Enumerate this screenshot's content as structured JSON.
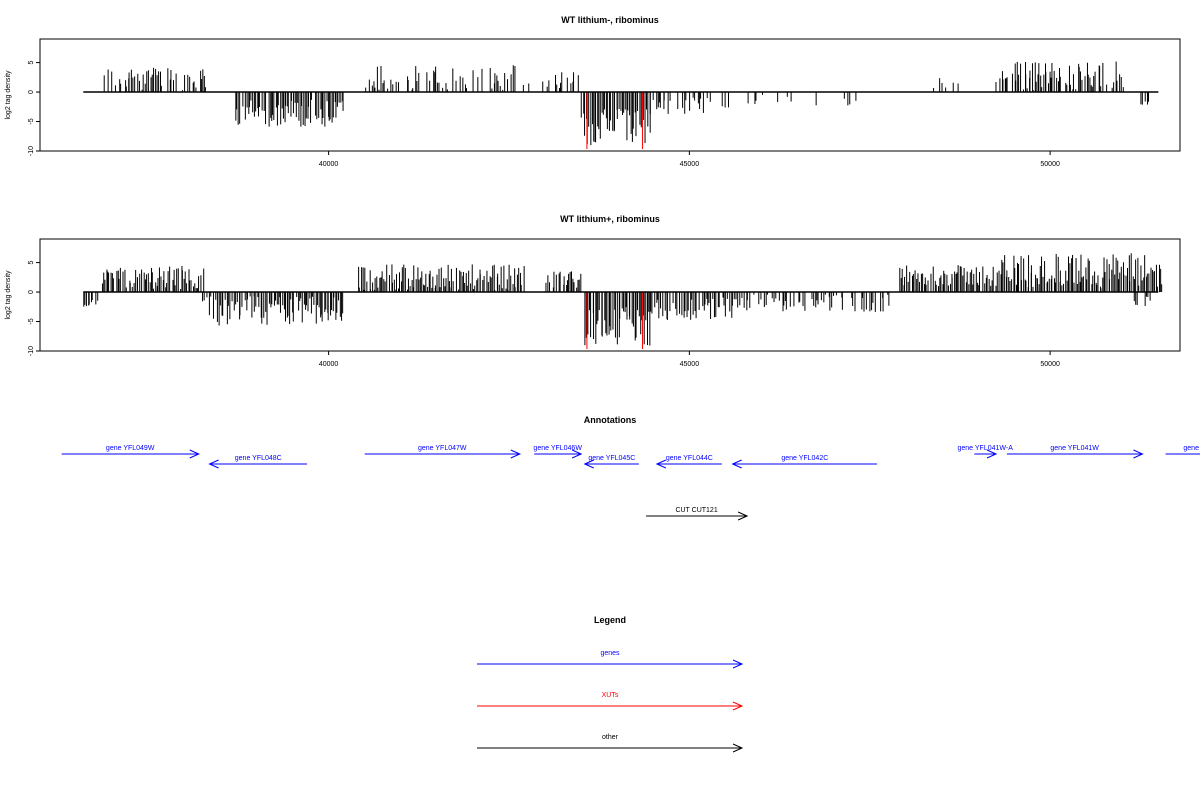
{
  "colors": {
    "gene": "#0000ff",
    "xut": "#ff0000",
    "other": "#000000",
    "bars": "#000000",
    "highlight": "#ff0000"
  },
  "chart_data": [
    {
      "type": "bar",
      "title": "WT lithium-, ribominus",
      "ylabel": "log2 tag density",
      "xlim": [
        36000,
        51800
      ],
      "ylim": [
        -10,
        9
      ],
      "xticks": [
        40000,
        45000,
        50000
      ],
      "xtick_labels": [
        "40000",
        "45000",
        "50000"
      ],
      "yticks": [
        5,
        0,
        -5,
        -10
      ],
      "ytick_labels": [
        "5",
        "0",
        "-5",
        "-10"
      ],
      "baseline_range": [
        36600,
        51500
      ],
      "highlight_lines": [
        43580,
        44350
      ],
      "segments": [
        {
          "x0": 36850,
          "x1": 38300,
          "sign": 1,
          "mean": 2.3,
          "amp": 2.0,
          "density": 0.55
        },
        {
          "x0": 38700,
          "x1": 40200,
          "sign": -1,
          "mean": 3.6,
          "amp": 2.3,
          "density": 0.95
        },
        {
          "x0": 40500,
          "x1": 42800,
          "sign": 1,
          "mean": 2.2,
          "amp": 2.4,
          "density": 0.55
        },
        {
          "x0": 42950,
          "x1": 43500,
          "sign": 1,
          "mean": 2.0,
          "amp": 1.6,
          "density": 0.55
        },
        {
          "x0": 43500,
          "x1": 44450,
          "sign": -1,
          "mean": 6.0,
          "amp": 3.2,
          "density": 1.0
        },
        {
          "x0": 44450,
          "x1": 45550,
          "sign": -1,
          "mean": 2.4,
          "amp": 1.5,
          "density": 0.45
        },
        {
          "x0": 45550,
          "x1": 47400,
          "sign": -1,
          "mean": 1.4,
          "amp": 1.0,
          "density": 0.18
        },
        {
          "x0": 48300,
          "x1": 49300,
          "sign": 1,
          "mean": 1.5,
          "amp": 1.0,
          "density": 0.12
        },
        {
          "x0": 49300,
          "x1": 51000,
          "sign": 1,
          "mean": 2.8,
          "amp": 2.5,
          "density": 0.8
        },
        {
          "x0": 51250,
          "x1": 51350,
          "sign": -1,
          "mean": 2.0,
          "amp": 0.5,
          "density": 0.5
        }
      ]
    },
    {
      "type": "bar",
      "title": "WT lithium+, ribominus",
      "ylabel": "log2 tag density",
      "xlim": [
        36000,
        51800
      ],
      "ylim": [
        -10,
        9
      ],
      "xticks": [
        40000,
        45000,
        50000
      ],
      "xtick_labels": [
        "40000",
        "45000",
        "50000"
      ],
      "yticks": [
        5,
        0,
        -5,
        -10
      ],
      "ytick_labels": [
        "5",
        "0",
        "-5",
        "-10"
      ],
      "baseline_range": [
        36600,
        51500
      ],
      "highlight_lines": [
        43580,
        44350
      ],
      "segments": [
        {
          "x0": 36600,
          "x1": 36800,
          "sign": -1,
          "mean": 1.5,
          "amp": 1.0,
          "density": 0.7
        },
        {
          "x0": 36850,
          "x1": 38250,
          "sign": 1,
          "mean": 2.5,
          "amp": 2.0,
          "density": 0.9
        },
        {
          "x0": 38250,
          "x1": 40200,
          "sign": -1,
          "mean": 3.2,
          "amp": 2.5,
          "density": 0.95
        },
        {
          "x0": 40400,
          "x1": 42700,
          "sign": 1,
          "mean": 2.5,
          "amp": 2.2,
          "density": 0.95
        },
        {
          "x0": 43000,
          "x1": 43550,
          "sign": 1,
          "mean": 2.2,
          "amp": 1.6,
          "density": 0.7
        },
        {
          "x0": 43550,
          "x1": 44450,
          "sign": -1,
          "mean": 5.8,
          "amp": 3.3,
          "density": 1.0
        },
        {
          "x0": 44450,
          "x1": 45700,
          "sign": -1,
          "mean": 2.8,
          "amp": 2.0,
          "density": 0.85
        },
        {
          "x0": 45700,
          "x1": 47800,
          "sign": -1,
          "mean": 1.8,
          "amp": 1.6,
          "density": 0.6
        },
        {
          "x0": 47900,
          "x1": 49300,
          "sign": 1,
          "mean": 2.8,
          "amp": 1.8,
          "density": 0.9
        },
        {
          "x0": 49300,
          "x1": 51550,
          "sign": 1,
          "mean": 3.6,
          "amp": 3.0,
          "density": 1.0
        },
        {
          "x0": 51100,
          "x1": 51400,
          "sign": -1,
          "mean": 1.5,
          "amp": 1.0,
          "density": 0.5
        }
      ]
    }
  ],
  "annotations": {
    "title": "Annotations",
    "xlim": [
      36000,
      51800
    ],
    "items": [
      {
        "label": "gene YFL049W",
        "x0": 36300,
        "x1": 38200,
        "dir": "right",
        "row": 0,
        "type": "gene"
      },
      {
        "label": "gene YFL048C",
        "x0": 38350,
        "x1": 39700,
        "dir": "left",
        "row": 1,
        "type": "gene"
      },
      {
        "label": "gene YFL047W",
        "x0": 40500,
        "x1": 42650,
        "dir": "right",
        "row": 0,
        "type": "gene"
      },
      {
        "label": "gene YFL046W",
        "x0": 42850,
        "x1": 43500,
        "dir": "right",
        "row": 0,
        "type": "gene"
      },
      {
        "label": "gene YFL045C",
        "x0": 43550,
        "x1": 44300,
        "dir": "left",
        "row": 1,
        "type": "gene"
      },
      {
        "label": "gene YFL044C",
        "x0": 44550,
        "x1": 45450,
        "dir": "left",
        "row": 1,
        "type": "gene"
      },
      {
        "label": "gene YFL042C",
        "x0": 45600,
        "x1": 47600,
        "dir": "left",
        "row": 1,
        "type": "gene"
      },
      {
        "label": "gene YFL041W-A",
        "x0": 48950,
        "x1": 49250,
        "dir": "right",
        "row": 0,
        "type": "gene"
      },
      {
        "label": "gene YFL041W",
        "x0": 49400,
        "x1": 51280,
        "dir": "right",
        "row": 0,
        "type": "gene"
      },
      {
        "label": "gene Y",
        "x0": 51600,
        "x1": 52400,
        "dir": "right",
        "row": 0,
        "type": "gene"
      },
      {
        "label": "CUT CUT121",
        "x0": 44400,
        "x1": 45800,
        "dir": "right",
        "row": 3,
        "type": "other"
      }
    ]
  },
  "legend": {
    "title": "Legend",
    "items": [
      {
        "label": "genes",
        "type": "gene"
      },
      {
        "label": "XUTs",
        "type": "xut"
      },
      {
        "label": "other",
        "type": "other"
      }
    ]
  }
}
